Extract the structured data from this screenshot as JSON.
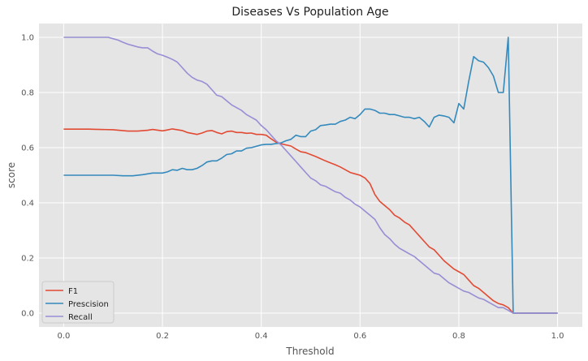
{
  "chart_data": {
    "type": "line",
    "title": "Diseases Vs Population Age",
    "xlabel": "Threshold",
    "ylabel": "score",
    "xlim": [
      -0.05,
      1.05
    ],
    "ylim": [
      -0.05,
      1.05
    ],
    "xticks": [
      "0.0",
      "0.2",
      "0.4",
      "0.6",
      "0.8",
      "1.0"
    ],
    "yticks": [
      "0.0",
      "0.2",
      "0.4",
      "0.6",
      "0.8",
      "1.0"
    ],
    "grid": true,
    "legend_position": "lower-left",
    "colors": {
      "F1": "#e24a33",
      "Prescision": "#348abd",
      "Recall": "#988ed5",
      "plot_bg": "#e5e5e5",
      "grid": "#ffffff"
    },
    "series": [
      {
        "name": "F1",
        "x": [
          0.0,
          0.05,
          0.1,
          0.13,
          0.15,
          0.17,
          0.18,
          0.2,
          0.21,
          0.22,
          0.23,
          0.24,
          0.25,
          0.27,
          0.28,
          0.29,
          0.3,
          0.31,
          0.32,
          0.33,
          0.34,
          0.35,
          0.36,
          0.37,
          0.38,
          0.39,
          0.4,
          0.41,
          0.42,
          0.43,
          0.44,
          0.45,
          0.46,
          0.47,
          0.48,
          0.49,
          0.5,
          0.51,
          0.52,
          0.53,
          0.54,
          0.55,
          0.56,
          0.57,
          0.58,
          0.59,
          0.6,
          0.61,
          0.62,
          0.63,
          0.64,
          0.65,
          0.66,
          0.67,
          0.68,
          0.69,
          0.7,
          0.71,
          0.72,
          0.73,
          0.74,
          0.75,
          0.76,
          0.77,
          0.78,
          0.79,
          0.8,
          0.81,
          0.82,
          0.83,
          0.84,
          0.85,
          0.86,
          0.87,
          0.88,
          0.89,
          0.9,
          0.91,
          0.95,
          1.0
        ],
        "y": [
          0.667,
          0.667,
          0.665,
          0.66,
          0.66,
          0.663,
          0.666,
          0.661,
          0.664,
          0.668,
          0.665,
          0.662,
          0.655,
          0.648,
          0.653,
          0.66,
          0.662,
          0.655,
          0.65,
          0.658,
          0.66,
          0.655,
          0.655,
          0.652,
          0.653,
          0.648,
          0.648,
          0.645,
          0.632,
          0.62,
          0.614,
          0.61,
          0.606,
          0.595,
          0.585,
          0.582,
          0.575,
          0.568,
          0.56,
          0.552,
          0.545,
          0.538,
          0.53,
          0.52,
          0.51,
          0.505,
          0.5,
          0.49,
          0.47,
          0.43,
          0.405,
          0.39,
          0.375,
          0.355,
          0.345,
          0.33,
          0.32,
          0.3,
          0.28,
          0.26,
          0.24,
          0.23,
          0.21,
          0.19,
          0.175,
          0.16,
          0.15,
          0.14,
          0.12,
          0.1,
          0.09,
          0.075,
          0.06,
          0.045,
          0.035,
          0.03,
          0.02,
          0.0,
          0.0,
          0.0
        ]
      },
      {
        "name": "Prescision",
        "x": [
          0.0,
          0.05,
          0.1,
          0.12,
          0.14,
          0.16,
          0.18,
          0.2,
          0.21,
          0.22,
          0.23,
          0.24,
          0.25,
          0.26,
          0.27,
          0.28,
          0.29,
          0.3,
          0.31,
          0.32,
          0.33,
          0.34,
          0.35,
          0.36,
          0.37,
          0.38,
          0.39,
          0.4,
          0.41,
          0.42,
          0.43,
          0.44,
          0.45,
          0.46,
          0.47,
          0.48,
          0.49,
          0.5,
          0.51,
          0.52,
          0.53,
          0.54,
          0.55,
          0.56,
          0.57,
          0.58,
          0.59,
          0.6,
          0.61,
          0.62,
          0.63,
          0.64,
          0.65,
          0.66,
          0.67,
          0.68,
          0.69,
          0.7,
          0.71,
          0.72,
          0.73,
          0.74,
          0.75,
          0.76,
          0.77,
          0.78,
          0.79,
          0.8,
          0.81,
          0.82,
          0.83,
          0.84,
          0.85,
          0.86,
          0.87,
          0.88,
          0.89,
          0.9,
          0.91,
          0.95,
          1.0
        ],
        "y": [
          0.5,
          0.5,
          0.5,
          0.498,
          0.498,
          0.502,
          0.508,
          0.508,
          0.512,
          0.52,
          0.518,
          0.525,
          0.52,
          0.52,
          0.525,
          0.535,
          0.548,
          0.552,
          0.552,
          0.562,
          0.575,
          0.578,
          0.588,
          0.588,
          0.598,
          0.6,
          0.605,
          0.61,
          0.612,
          0.612,
          0.615,
          0.617,
          0.625,
          0.63,
          0.645,
          0.64,
          0.64,
          0.66,
          0.665,
          0.68,
          0.682,
          0.685,
          0.685,
          0.695,
          0.7,
          0.71,
          0.705,
          0.72,
          0.74,
          0.74,
          0.735,
          0.725,
          0.725,
          0.72,
          0.72,
          0.715,
          0.71,
          0.71,
          0.705,
          0.71,
          0.695,
          0.675,
          0.71,
          0.718,
          0.715,
          0.71,
          0.69,
          0.76,
          0.74,
          0.84,
          0.93,
          0.915,
          0.91,
          0.89,
          0.86,
          0.8,
          0.8,
          1.0,
          0.0,
          0.0,
          0.0
        ]
      },
      {
        "name": "Recall",
        "x": [
          0.0,
          0.05,
          0.09,
          0.1,
          0.11,
          0.12,
          0.13,
          0.14,
          0.15,
          0.16,
          0.17,
          0.18,
          0.19,
          0.2,
          0.21,
          0.22,
          0.23,
          0.24,
          0.25,
          0.26,
          0.27,
          0.28,
          0.29,
          0.3,
          0.31,
          0.32,
          0.33,
          0.34,
          0.35,
          0.36,
          0.37,
          0.38,
          0.39,
          0.4,
          0.41,
          0.42,
          0.43,
          0.44,
          0.45,
          0.46,
          0.47,
          0.48,
          0.49,
          0.5,
          0.51,
          0.52,
          0.53,
          0.54,
          0.55,
          0.56,
          0.57,
          0.58,
          0.59,
          0.6,
          0.61,
          0.62,
          0.63,
          0.64,
          0.65,
          0.66,
          0.67,
          0.68,
          0.69,
          0.7,
          0.71,
          0.72,
          0.73,
          0.74,
          0.75,
          0.76,
          0.77,
          0.78,
          0.79,
          0.8,
          0.81,
          0.82,
          0.83,
          0.84,
          0.85,
          0.86,
          0.87,
          0.88,
          0.89,
          0.9,
          0.91,
          0.95,
          1.0
        ],
        "y": [
          1.0,
          1.0,
          1.0,
          0.995,
          0.99,
          0.982,
          0.975,
          0.97,
          0.965,
          0.962,
          0.962,
          0.95,
          0.94,
          0.935,
          0.928,
          0.92,
          0.91,
          0.89,
          0.87,
          0.855,
          0.845,
          0.84,
          0.83,
          0.81,
          0.79,
          0.785,
          0.77,
          0.755,
          0.745,
          0.735,
          0.72,
          0.71,
          0.7,
          0.68,
          0.665,
          0.645,
          0.625,
          0.61,
          0.59,
          0.57,
          0.55,
          0.53,
          0.51,
          0.49,
          0.48,
          0.465,
          0.46,
          0.45,
          0.44,
          0.435,
          0.42,
          0.41,
          0.395,
          0.385,
          0.37,
          0.355,
          0.34,
          0.31,
          0.285,
          0.27,
          0.25,
          0.235,
          0.225,
          0.215,
          0.205,
          0.19,
          0.175,
          0.16,
          0.145,
          0.14,
          0.125,
          0.11,
          0.1,
          0.09,
          0.08,
          0.075,
          0.065,
          0.055,
          0.05,
          0.04,
          0.03,
          0.02,
          0.02,
          0.01,
          0.0,
          0.0,
          0.0
        ]
      }
    ]
  }
}
